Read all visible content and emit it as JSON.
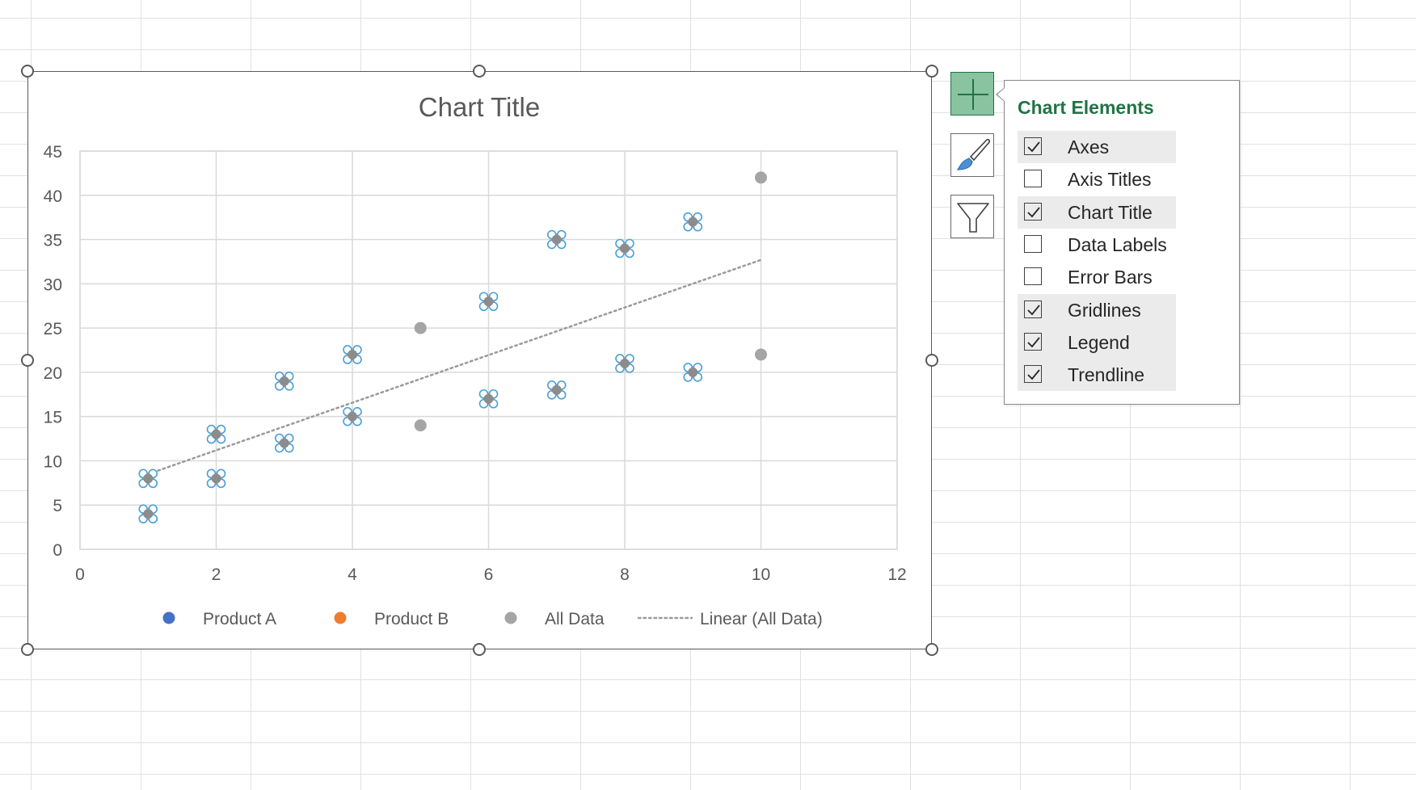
{
  "chart_data": {
    "type": "scatter",
    "title": "Chart Title",
    "xlim": [
      0,
      12
    ],
    "ylim": [
      0,
      45
    ],
    "x_ticks": [
      0,
      2,
      4,
      6,
      8,
      10,
      12
    ],
    "y_ticks": [
      0,
      5,
      10,
      15,
      20,
      25,
      30,
      35,
      40,
      45
    ],
    "grid": true,
    "legend_position": "bottom",
    "series": [
      {
        "name": "Product A",
        "color": "#4472c4",
        "x": [
          1,
          2,
          3,
          4,
          6,
          7,
          8,
          9
        ],
        "y": [
          8,
          13,
          19,
          22,
          28,
          35,
          34,
          37
        ]
      },
      {
        "name": "Product B",
        "color": "#ed7d31",
        "x": [
          1,
          2,
          3,
          4,
          6,
          7,
          8,
          9
        ],
        "y": [
          4,
          8,
          12,
          15,
          17,
          18,
          21,
          20
        ]
      },
      {
        "name": "All Data",
        "color": "#a5a5a5",
        "x": [
          1,
          1,
          2,
          2,
          3,
          3,
          4,
          4,
          5,
          5,
          6,
          6,
          7,
          7,
          8,
          8,
          9,
          9,
          10,
          10
        ],
        "y": [
          8,
          4,
          13,
          8,
          19,
          12,
          22,
          15,
          25,
          14,
          28,
          17,
          35,
          18,
          34,
          21,
          37,
          20,
          42,
          22
        ]
      }
    ],
    "trendline": {
      "name": "Linear (All Data)",
      "type": "linear",
      "color": "#a5a5a5",
      "x_range": [
        1,
        10
      ],
      "y_range": [
        8.5,
        32.7
      ]
    },
    "selected_series": "Product A, Product B"
  },
  "panel": {
    "title": "Chart Elements",
    "items": [
      {
        "label": "Axes",
        "checked": true
      },
      {
        "label": "Axis Titles",
        "checked": false
      },
      {
        "label": "Chart Title",
        "checked": true
      },
      {
        "label": "Data Labels",
        "checked": false
      },
      {
        "label": "Error Bars",
        "checked": false
      },
      {
        "label": "Gridlines",
        "checked": true
      },
      {
        "label": "Legend",
        "checked": true
      },
      {
        "label": "Trendline",
        "checked": true
      }
    ]
  },
  "side_buttons": [
    {
      "name": "chart-elements-button",
      "icon": "plus-icon",
      "active": true
    },
    {
      "name": "chart-styles-button",
      "icon": "paintbrush-icon",
      "active": false
    },
    {
      "name": "chart-filters-button",
      "icon": "funnel-icon",
      "active": false
    }
  ]
}
